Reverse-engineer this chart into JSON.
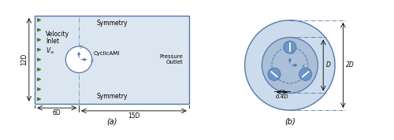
{
  "fig_width": 5.0,
  "fig_height": 1.78,
  "dpi": 100,
  "panel_a": {
    "rect_color": "#dce6f1",
    "rect_edge_color": "#5577aa",
    "circle_color": "white",
    "circle_edge_color": "#5577aa",
    "arrows_color": "#4a7a2a",
    "arrows_count": 9,
    "dash_line_color": "#7799bb",
    "label_12D": "12D",
    "label_6D": "6D",
    "label_15D": "15D",
    "label_symmetry_top": "Symmetry",
    "label_symmetry_bottom": "Symmetry",
    "label_velocity": "Velocity\nInlet",
    "label_Vinf": "$V_{\\infty}$",
    "label_cyclic": "CyclicAMI",
    "label_pressure": "Pressure\nOutlet",
    "label_a": "(a)",
    "axis_color": "#5577aa"
  },
  "panel_b": {
    "outer_circle_color": "#cddcec",
    "outer_circle_edge_color": "#5577aa",
    "inner_circle_color": "#aabfd8",
    "inner_circle_edge_color": "#5577aa",
    "rotor_circle_color": "#6b96c8",
    "rotor_circle_edge_color": "#5577aa",
    "dashed_circle_color": "#5577aa",
    "label_D": "D",
    "label_2D": "2D",
    "label_04D": "0.4D",
    "label_b": "(b)",
    "axis_color": "#5577aa"
  }
}
